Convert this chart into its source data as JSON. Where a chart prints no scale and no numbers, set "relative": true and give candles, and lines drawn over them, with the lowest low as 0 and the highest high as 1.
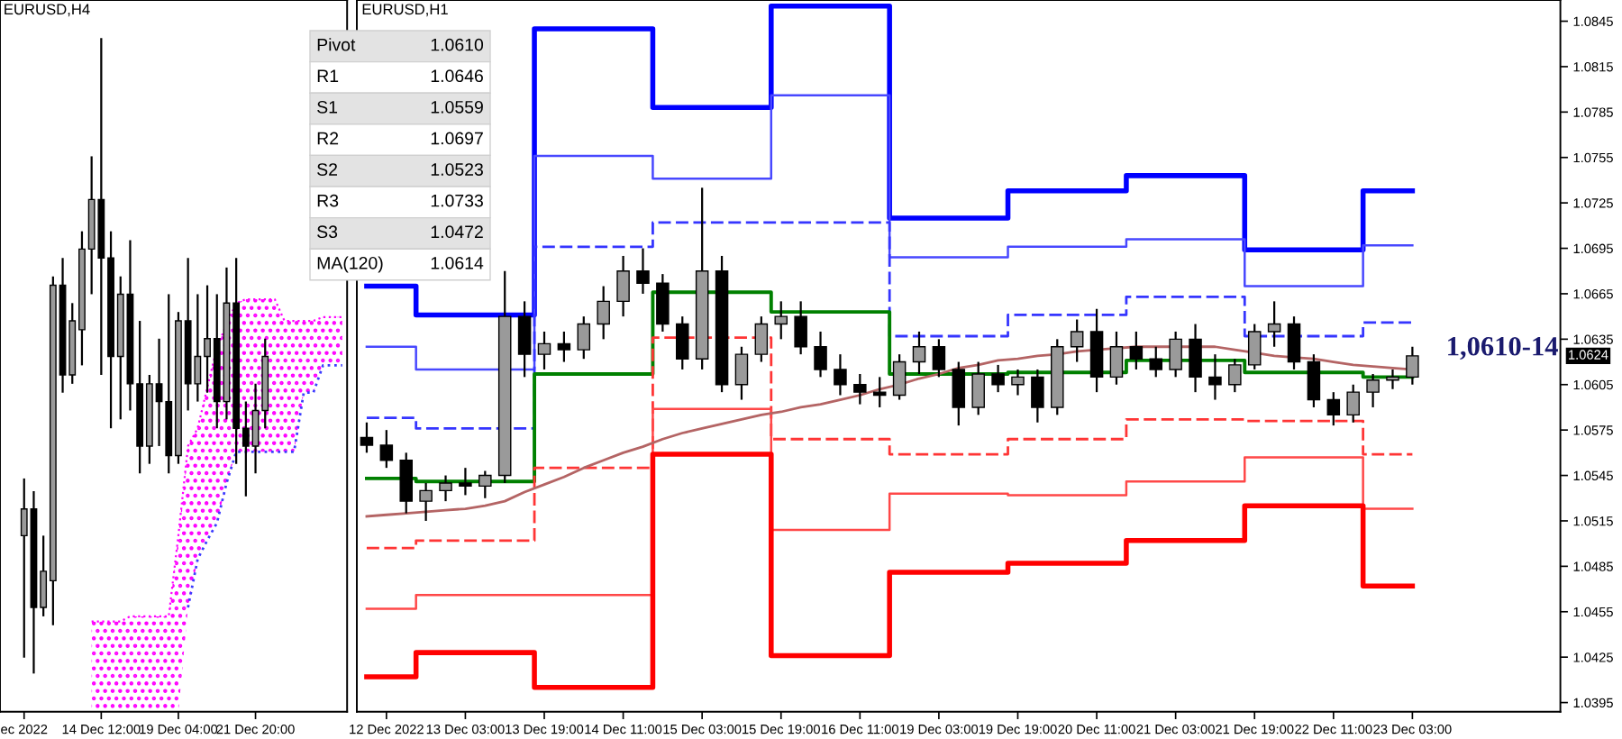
{
  "chart_data": [
    {
      "type": "candlestick",
      "title": "EURUSD,H4",
      "relative": true,
      "tick_labels": "x",
      "categories": [
        null,
        null,
        "ec 2022",
        null,
        null,
        null,
        null,
        null,
        null,
        null,
        "14 Dec 12:00",
        null,
        null,
        null,
        null,
        null,
        null,
        null,
        "19 Dec 04:00",
        null,
        null,
        null,
        null,
        null,
        null,
        null,
        "21 Dec 20:00",
        null,
        null,
        null,
        null,
        null,
        null,
        null,
        null,
        null
      ],
      "ohlc": [
        null,
        null,
        [
          0.217,
          0.307,
          0.025,
          0.259
        ],
        [
          0.259,
          0.287,
          0.0,
          0.104
        ],
        [
          0.104,
          0.217,
          0.09,
          0.161
        ],
        [
          0.146,
          0.625,
          0.076,
          0.611
        ],
        [
          0.611,
          0.654,
          0.442,
          0.47
        ],
        [
          0.47,
          0.583,
          0.456,
          0.555
        ],
        [
          0.541,
          0.696,
          0.485,
          0.668
        ],
        [
          0.668,
          0.814,
          0.597,
          0.746
        ],
        [
          0.746,
          1.0,
          0.47,
          0.654
        ],
        [
          0.654,
          0.696,
          0.386,
          0.499
        ],
        [
          0.499,
          0.625,
          0.4,
          0.597
        ],
        [
          0.597,
          0.682,
          0.414,
          0.456
        ],
        [
          0.456,
          0.555,
          0.315,
          0.358
        ],
        [
          0.358,
          0.47,
          0.33,
          0.456
        ],
        [
          0.456,
          0.527,
          0.358,
          0.428
        ],
        [
          0.428,
          0.597,
          0.315,
          0.343
        ],
        [
          0.343,
          0.569,
          0.33,
          0.555
        ],
        [
          0.555,
          0.654,
          0.414,
          0.456
        ],
        [
          0.456,
          0.597,
          0.428,
          0.499
        ],
        [
          0.499,
          0.611,
          0.442,
          0.527
        ],
        [
          0.527,
          0.597,
          0.386,
          0.428
        ],
        [
          0.428,
          0.639,
          0.4,
          0.583
        ],
        [
          0.583,
          0.654,
          0.33,
          0.386
        ],
        [
          0.386,
          0.428,
          0.279,
          0.358
        ],
        [
          0.358,
          0.456,
          0.315,
          0.414
        ],
        [
          0.414,
          0.527,
          0.386,
          0.499
        ],
        null,
        null,
        null,
        null,
        null,
        null,
        null,
        null
      ],
      "series": [
        {
          "type": "area",
          "color": "#ff00ff",
          "values": [
            null,
            null,
            null,
            null,
            null,
            null,
            null,
            null,
            null,
            0.082,
            0.082,
            0.082,
            0.082,
            0.09,
            0.09,
            0.09,
            0.09,
            0.09,
            0.217,
            0.358,
            0.386,
            0.45,
            0.513,
            0.55,
            0.583,
            0.589,
            0.589,
            0.589,
            0.589,
            0.555,
            0.555,
            0.555,
            0.555,
            0.561,
            0.561,
            0.561
          ],
          "line_style": "dotted"
        },
        {
          "type": "line",
          "color": "#3c3cff",
          "line_style": "dotted",
          "values": [
            null,
            null,
            null,
            null,
            null,
            null,
            null,
            null,
            null,
            null,
            null,
            null,
            null,
            null,
            null,
            null,
            null,
            null,
            null,
            0.104,
            0.18,
            0.21,
            0.237,
            0.3,
            0.349,
            0.349,
            0.349,
            0.349,
            0.349,
            0.349,
            0.349,
            0.442,
            0.442,
            0.485,
            0.485,
            0.485
          ]
        }
      ]
    },
    {
      "type": "candlestick",
      "title": "EURUSD,H1",
      "categories": [
        null,
        "12 Dec 2022",
        null,
        null,
        null,
        "13 Dec 03:00",
        null,
        null,
        null,
        "13 Dec 19:00",
        null,
        null,
        null,
        "14 Dec 11:00",
        null,
        null,
        null,
        "15 Dec 03:00",
        null,
        null,
        null,
        "15 Dec 19:00",
        null,
        null,
        null,
        "16 Dec 11:00",
        null,
        null,
        null,
        "19 Dec 03:00",
        null,
        null,
        null,
        "19 Dec 19:00",
        null,
        null,
        null,
        "20 Dec 11:00",
        null,
        null,
        null,
        "21 Dec 03:00",
        null,
        null,
        null,
        "21 Dec 19:00",
        null,
        null,
        null,
        "22 Dec 11:00",
        null,
        null,
        null,
        "23 Dec 03:00",
        null,
        null,
        null,
        null,
        null,
        null,
        null
      ],
      "ohlc": [
        [
          1.057,
          1.058,
          1.056,
          1.0565
        ],
        [
          1.0565,
          1.0575,
          1.055,
          1.0555
        ],
        [
          1.0555,
          1.056,
          1.052,
          1.0528
        ],
        [
          1.0528,
          1.054,
          1.0515,
          1.0535
        ],
        [
          1.0535,
          1.0545,
          1.0528,
          1.054
        ],
        [
          1.054,
          1.055,
          1.0532,
          1.0538
        ],
        [
          1.0538,
          1.0548,
          1.053,
          1.0545
        ],
        [
          1.0545,
          1.068,
          1.054,
          1.065
        ],
        [
          1.065,
          1.066,
          1.061,
          1.0625
        ],
        [
          1.0625,
          1.064,
          1.0615,
          1.0632
        ],
        [
          1.0632,
          1.064,
          1.062,
          1.0628
        ],
        [
          1.0628,
          1.065,
          1.0622,
          1.0645
        ],
        [
          1.0645,
          1.067,
          1.0635,
          1.066
        ],
        [
          1.066,
          1.069,
          1.065,
          1.068
        ],
        [
          1.068,
          1.0695,
          1.0665,
          1.0672
        ],
        [
          1.0672,
          1.0678,
          1.064,
          1.0645
        ],
        [
          1.0645,
          1.065,
          1.0615,
          1.0622
        ],
        [
          1.0622,
          1.0735,
          1.0615,
          1.068
        ],
        [
          1.068,
          1.069,
          1.06,
          1.0605
        ],
        [
          1.0605,
          1.063,
          1.0595,
          1.0625
        ],
        [
          1.0625,
          1.065,
          1.062,
          1.0645
        ],
        [
          1.0645,
          1.066,
          1.0635,
          1.065
        ],
        [
          1.065,
          1.066,
          1.0625,
          1.063
        ],
        [
          1.063,
          1.064,
          1.061,
          1.0615
        ],
        [
          1.0615,
          1.0625,
          1.0598,
          1.0605
        ],
        [
          1.0605,
          1.0612,
          1.0592,
          1.06
        ],
        [
          1.06,
          1.061,
          1.059,
          1.0598
        ],
        [
          1.0598,
          1.0625,
          1.0595,
          1.062
        ],
        [
          1.062,
          1.064,
          1.0612,
          1.063
        ],
        [
          1.063,
          1.0635,
          1.061,
          1.0615
        ],
        [
          1.0615,
          1.062,
          1.0578,
          1.059
        ],
        [
          1.059,
          1.062,
          1.0585,
          1.0612
        ],
        [
          1.0612,
          1.0618,
          1.06,
          1.0605
        ],
        [
          1.0605,
          1.0615,
          1.0598,
          1.061
        ],
        [
          1.061,
          1.0615,
          1.058,
          1.059
        ],
        [
          1.059,
          1.0635,
          1.0585,
          1.063
        ],
        [
          1.063,
          1.0648,
          1.062,
          1.064
        ],
        [
          1.064,
          1.0655,
          1.06,
          1.061
        ],
        [
          1.061,
          1.064,
          1.0605,
          1.063
        ],
        [
          1.063,
          1.064,
          1.0615,
          1.0622
        ],
        [
          1.0622,
          1.063,
          1.061,
          1.0615
        ],
        [
          1.0615,
          1.064,
          1.061,
          1.0635
        ],
        [
          1.0635,
          1.0645,
          1.06,
          1.061
        ],
        [
          1.061,
          1.0625,
          1.0595,
          1.0605
        ],
        [
          1.0605,
          1.0622,
          1.06,
          1.0618
        ],
        [
          1.0618,
          1.0645,
          1.0615,
          1.064
        ],
        [
          1.064,
          1.066,
          1.063,
          1.0645
        ],
        [
          1.0645,
          1.065,
          1.0615,
          1.062
        ],
        [
          1.062,
          1.0625,
          1.059,
          1.0595
        ],
        [
          1.0595,
          1.06,
          1.0578,
          1.0585
        ],
        [
          1.0585,
          1.0605,
          1.058,
          1.06
        ],
        [
          1.06,
          1.0612,
          1.059,
          1.0608
        ],
        [
          1.0608,
          1.0615,
          1.0602,
          1.061
        ],
        [
          1.061,
          1.063,
          1.0605,
          1.0624
        ],
        null,
        null,
        null,
        null,
        null,
        null,
        null
      ],
      "ylim": [
        1.0389,
        1.0859
      ],
      "yticks": [
        1.0395,
        1.0425,
        1.0455,
        1.0485,
        1.0515,
        1.0545,
        1.0575,
        1.0605,
        1.0635,
        1.0665,
        1.0695,
        1.0725,
        1.0755,
        1.0785,
        1.0815,
        1.0845
      ],
      "series": [
        {
          "type": "step",
          "color": "#0000ff",
          "line_style": "solid",
          "values": [
            1.067,
            1.067,
            1.067,
            1.0651,
            1.0651,
            1.0651,
            1.0651,
            1.0651,
            1.0651,
            1.084,
            1.084,
            1.084,
            1.084,
            1.084,
            1.084,
            1.0788,
            1.0788,
            1.0788,
            1.0788,
            1.0788,
            1.0788,
            1.0855,
            1.0855,
            1.0855,
            1.0855,
            1.0855,
            1.0855,
            1.0715,
            1.0715,
            1.0715,
            1.0715,
            1.0715,
            1.0715,
            1.0733,
            1.0733,
            1.0733,
            1.0733,
            1.0733,
            1.0733,
            1.0743,
            1.0743,
            1.0743,
            1.0743,
            1.0743,
            1.0743,
            1.0694,
            1.0694,
            1.0694,
            1.0694,
            1.0694,
            1.0694,
            1.0733,
            1.0733,
            1.0733,
            null,
            null,
            null,
            null,
            null,
            null,
            null
          ]
        },
        {
          "type": "step",
          "color": "#4848ff",
          "line_style": "solid",
          "values": [
            1.063,
            1.063,
            1.063,
            1.0615,
            1.0615,
            1.0615,
            1.0615,
            1.0615,
            1.0615,
            1.0756,
            1.0756,
            1.0756,
            1.0756,
            1.0756,
            1.0756,
            1.0741,
            1.0741,
            1.0741,
            1.0741,
            1.0741,
            1.0741,
            1.0796,
            1.0796,
            1.0796,
            1.0796,
            1.0796,
            1.0796,
            1.0689,
            1.0689,
            1.0689,
            1.0689,
            1.0689,
            1.0689,
            1.0696,
            1.0696,
            1.0696,
            1.0696,
            1.0696,
            1.0696,
            1.0701,
            1.0701,
            1.0701,
            1.0701,
            1.0701,
            1.0701,
            1.067,
            1.067,
            1.067,
            1.067,
            1.067,
            1.067,
            1.0697,
            1.0697,
            1.0697,
            null,
            null,
            null,
            null,
            null,
            null,
            null
          ]
        },
        {
          "type": "step",
          "color": "#3535ff",
          "line_style": "dashed",
          "values": [
            1.0583,
            1.0583,
            1.0583,
            1.0576,
            1.0576,
            1.0576,
            1.0576,
            1.0576,
            1.0576,
            1.0696,
            1.0696,
            1.0696,
            1.0696,
            1.0696,
            1.0696,
            1.0712,
            1.0712,
            1.0712,
            1.0712,
            1.0712,
            1.0712,
            1.0712,
            1.0712,
            1.0712,
            1.0712,
            1.0712,
            1.0712,
            1.0637,
            1.0637,
            1.0637,
            1.0637,
            1.0637,
            1.0637,
            1.0651,
            1.0651,
            1.0651,
            1.0651,
            1.0651,
            1.0651,
            1.0663,
            1.0663,
            1.0663,
            1.0663,
            1.0663,
            1.0663,
            1.0637,
            1.0637,
            1.0637,
            1.0637,
            1.0637,
            1.0637,
            1.0646,
            1.0646,
            1.0646,
            null,
            null,
            null,
            null,
            null,
            null,
            null
          ]
        },
        {
          "type": "step",
          "color": "#008000",
          "line_style": "solid",
          "values": [
            1.0543,
            1.0543,
            1.0543,
            1.0541,
            1.0541,
            1.0541,
            1.0541,
            1.0541,
            1.0541,
            1.0612,
            1.0612,
            1.0612,
            1.0612,
            1.0612,
            1.0612,
            1.0666,
            1.0666,
            1.0666,
            1.0666,
            1.0666,
            1.0666,
            1.0653,
            1.0653,
            1.0653,
            1.0653,
            1.0653,
            1.0653,
            1.0612,
            1.0612,
            1.0612,
            1.0612,
            1.0612,
            1.0612,
            1.0613,
            1.0613,
            1.0613,
            1.0613,
            1.0613,
            1.0613,
            1.0621,
            1.0621,
            1.0621,
            1.0621,
            1.0621,
            1.0621,
            1.0613,
            1.0613,
            1.0613,
            1.0613,
            1.0613,
            1.0613,
            1.061,
            1.061,
            1.061,
            null,
            null,
            null,
            null,
            null,
            null,
            null
          ]
        },
        {
          "type": "step",
          "color": "#ff3535",
          "line_style": "dashed",
          "values": [
            1.0497,
            1.0497,
            1.0497,
            1.0502,
            1.0502,
            1.0502,
            1.0502,
            1.0502,
            1.0502,
            1.055,
            1.055,
            1.055,
            1.055,
            1.055,
            1.055,
            1.0636,
            1.0636,
            1.0636,
            1.0636,
            1.0636,
            1.0636,
            1.0569,
            1.0569,
            1.0569,
            1.0569,
            1.0569,
            1.0569,
            1.0559,
            1.0559,
            1.0559,
            1.0559,
            1.0559,
            1.0559,
            1.0569,
            1.0569,
            1.0569,
            1.0569,
            1.0569,
            1.0569,
            1.0582,
            1.0582,
            1.0582,
            1.0582,
            1.0582,
            1.0582,
            1.0581,
            1.0581,
            1.0581,
            1.0581,
            1.0581,
            1.0581,
            1.0559,
            1.0559,
            1.0559,
            null,
            null,
            null,
            null,
            null,
            null,
            null
          ]
        },
        {
          "type": "step",
          "color": "#ff4848",
          "line_style": "solid",
          "values": [
            1.0457,
            1.0457,
            1.0457,
            1.0466,
            1.0466,
            1.0466,
            1.0466,
            1.0466,
            1.0466,
            1.0466,
            1.0466,
            1.0466,
            1.0466,
            1.0466,
            1.0466,
            1.0589,
            1.0589,
            1.0589,
            1.0589,
            1.0589,
            1.0589,
            1.0509,
            1.0509,
            1.0509,
            1.0509,
            1.0509,
            1.0509,
            1.0533,
            1.0533,
            1.0533,
            1.0533,
            1.0533,
            1.0533,
            1.0532,
            1.0532,
            1.0532,
            1.0532,
            1.0532,
            1.0532,
            1.0541,
            1.0541,
            1.0541,
            1.0541,
            1.0541,
            1.0541,
            1.0557,
            1.0557,
            1.0557,
            1.0557,
            1.0557,
            1.0557,
            1.0523,
            1.0523,
            1.0523,
            null,
            null,
            null,
            null,
            null,
            null,
            null
          ]
        },
        {
          "type": "step",
          "color": "#ff0000",
          "line_style": "solid",
          "values": [
            1.0412,
            1.0412,
            1.0412,
            1.0428,
            1.0428,
            1.0428,
            1.0428,
            1.0428,
            1.0428,
            1.0405,
            1.0405,
            1.0405,
            1.0405,
            1.0405,
            1.0405,
            1.0559,
            1.0559,
            1.0559,
            1.0559,
            1.0559,
            1.0559,
            1.0426,
            1.0426,
            1.0426,
            1.0426,
            1.0426,
            1.0426,
            1.0481,
            1.0481,
            1.0481,
            1.0481,
            1.0481,
            1.0481,
            1.0487,
            1.0487,
            1.0487,
            1.0487,
            1.0487,
            1.0487,
            1.0502,
            1.0502,
            1.0502,
            1.0502,
            1.0502,
            1.0502,
            1.0525,
            1.0525,
            1.0525,
            1.0525,
            1.0525,
            1.0525,
            1.0472,
            1.0472,
            1.0472,
            null,
            null,
            null,
            null,
            null,
            null,
            null
          ]
        },
        {
          "type": "line",
          "color": "#b46464",
          "line_style": "solid",
          "values": [
            1.0518,
            1.0519,
            1.052,
            1.0521,
            1.0522,
            1.0523,
            1.0525,
            1.0528,
            1.0534,
            1.0539,
            1.0544,
            1.055,
            1.0555,
            1.056,
            1.0564,
            1.0569,
            1.0573,
            1.0576,
            1.0579,
            1.0582,
            1.0585,
            1.0587,
            1.059,
            1.0592,
            1.0595,
            1.0598,
            1.0602,
            1.0605,
            1.0609,
            1.0612,
            1.0616,
            1.0618,
            1.0621,
            1.0622,
            1.0624,
            1.0625,
            1.0627,
            1.0628,
            1.0629,
            1.063,
            1.063,
            1.063,
            1.063,
            1.063,
            1.0628,
            1.0626,
            1.0624,
            1.0623,
            1.0622,
            1.062,
            1.0618,
            1.0617,
            1.0616,
            1.0615,
            null,
            null,
            null,
            null,
            null,
            null,
            null
          ]
        }
      ],
      "annotations": [
        "Pivot",
        "1.0610",
        "R1",
        "1.0646",
        "S1",
        "1.0559",
        "R2",
        "1.0697",
        "S2",
        "1.0523",
        "R3",
        "1.0733",
        "S3",
        "1.0472",
        "MA(120)",
        "1.0614",
        "1,0610-14",
        "1.0624"
      ]
    }
  ]
}
